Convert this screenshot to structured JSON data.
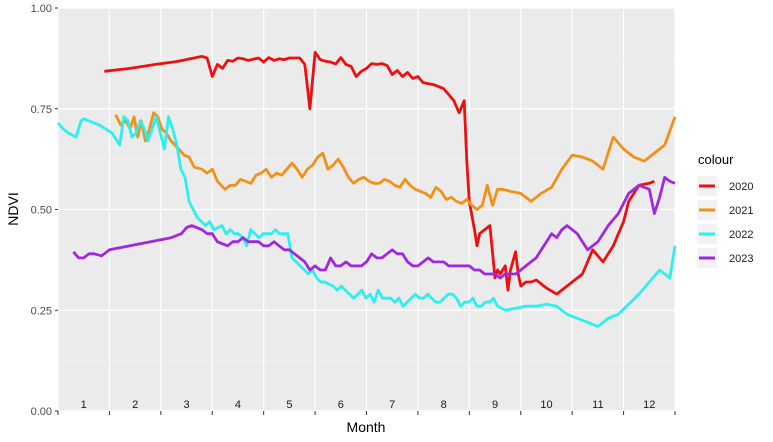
{
  "chart_data": {
    "type": "line",
    "xlabel": "Month",
    "ylabel": "NDVI",
    "xlim": [
      0.5,
      12.5
    ],
    "ylim": [
      0,
      1
    ],
    "grid": true,
    "legend_position": "right",
    "legend_title": "colour",
    "month_labels": [
      "1",
      "2",
      "3",
      "4",
      "5",
      "6",
      "7",
      "8",
      "9",
      "10",
      "11",
      "12"
    ],
    "y_ticks": [
      {
        "v": 0.0,
        "label": "0.00"
      },
      {
        "v": 0.25,
        "label": "0.25"
      },
      {
        "v": 0.5,
        "label": "0.50"
      },
      {
        "v": 0.75,
        "label": "0.75"
      },
      {
        "v": 1.0,
        "label": "1.00"
      }
    ],
    "colors": {
      "2020": "#ee1010",
      "2021": "#f39019",
      "2022": "#2cf0f0",
      "2023": "#a127e0"
    },
    "series": [
      {
        "name": "2020",
        "x": [
          1.4,
          1.9,
          2.4,
          2.8,
          3.3,
          3.4,
          3.5,
          3.6,
          3.7,
          3.8,
          3.9,
          4.0,
          4.1,
          4.2,
          4.4,
          4.5,
          4.6,
          4.7,
          4.8,
          4.9,
          5.0,
          5.1,
          5.2,
          5.3,
          5.4,
          5.5,
          5.6,
          5.7,
          5.8,
          5.9,
          6.0,
          6.1,
          6.2,
          6.3,
          6.4,
          6.5,
          6.6,
          6.7,
          6.8,
          6.9,
          7.0,
          7.1,
          7.2,
          7.3,
          7.4,
          7.5,
          7.6,
          7.8,
          8.0,
          8.2,
          8.3,
          8.4,
          8.45,
          8.5,
          8.6,
          8.65,
          8.7,
          8.9,
          9.0,
          9.05,
          9.1,
          9.2,
          9.25,
          9.3,
          9.4,
          9.45,
          9.5,
          9.55,
          9.6,
          9.7,
          9.8,
          10.0,
          10.2,
          10.5,
          10.7,
          10.9,
          11.1,
          11.3,
          11.4,
          11.5,
          11.6,
          11.8,
          12.0,
          12.1
        ],
        "y": [
          0.843,
          0.85,
          0.86,
          0.867,
          0.88,
          0.876,
          0.83,
          0.86,
          0.85,
          0.87,
          0.868,
          0.876,
          0.874,
          0.87,
          0.876,
          0.866,
          0.877,
          0.87,
          0.874,
          0.872,
          0.876,
          0.876,
          0.876,
          0.86,
          0.75,
          0.89,
          0.872,
          0.868,
          0.866,
          0.861,
          0.877,
          0.86,
          0.855,
          0.83,
          0.843,
          0.85,
          0.862,
          0.86,
          0.862,
          0.857,
          0.835,
          0.845,
          0.83,
          0.84,
          0.825,
          0.83,
          0.815,
          0.81,
          0.8,
          0.77,
          0.74,
          0.77,
          0.62,
          0.52,
          0.45,
          0.41,
          0.44,
          0.46,
          0.33,
          0.35,
          0.34,
          0.36,
          0.3,
          0.35,
          0.395,
          0.34,
          0.31,
          0.315,
          0.32,
          0.32,
          0.325,
          0.305,
          0.29,
          0.32,
          0.34,
          0.4,
          0.37,
          0.41,
          0.44,
          0.47,
          0.52,
          0.56,
          0.565,
          0.57
        ]
      },
      {
        "name": "2021",
        "x": [
          1.62,
          1.72,
          1.82,
          1.9,
          1.98,
          2.05,
          2.12,
          2.2,
          2.28,
          2.36,
          2.44,
          2.52,
          2.6,
          2.7,
          2.85,
          2.95,
          3.05,
          3.15,
          3.3,
          3.4,
          3.5,
          3.6,
          3.75,
          3.85,
          3.95,
          4.05,
          4.15,
          4.25,
          4.35,
          4.45,
          4.55,
          4.65,
          4.75,
          4.85,
          4.95,
          5.05,
          5.15,
          5.25,
          5.35,
          5.45,
          5.55,
          5.65,
          5.75,
          5.85,
          5.95,
          6.05,
          6.15,
          6.25,
          6.35,
          6.45,
          6.55,
          6.65,
          6.75,
          6.85,
          6.95,
          7.05,
          7.15,
          7.25,
          7.35,
          7.45,
          7.55,
          7.65,
          7.75,
          7.85,
          7.95,
          8.05,
          8.15,
          8.25,
          8.35,
          8.45,
          8.55,
          8.65,
          8.75,
          8.85,
          8.95,
          9.05,
          9.15,
          9.3,
          9.5,
          9.7,
          9.9,
          10.1,
          10.3,
          10.5,
          10.7,
          10.9,
          11.1,
          11.3,
          11.5,
          11.7,
          11.9,
          12.1,
          12.3,
          12.5
        ],
        "y": [
          0.735,
          0.71,
          0.72,
          0.7,
          0.73,
          0.68,
          0.72,
          0.67,
          0.7,
          0.74,
          0.73,
          0.7,
          0.69,
          0.67,
          0.65,
          0.635,
          0.63,
          0.605,
          0.6,
          0.59,
          0.6,
          0.57,
          0.55,
          0.56,
          0.56,
          0.575,
          0.57,
          0.565,
          0.585,
          0.59,
          0.6,
          0.58,
          0.59,
          0.585,
          0.6,
          0.615,
          0.6,
          0.58,
          0.6,
          0.61,
          0.63,
          0.64,
          0.6,
          0.61,
          0.625,
          0.605,
          0.58,
          0.565,
          0.575,
          0.58,
          0.57,
          0.565,
          0.565,
          0.575,
          0.57,
          0.56,
          0.555,
          0.575,
          0.56,
          0.55,
          0.545,
          0.54,
          0.53,
          0.555,
          0.545,
          0.525,
          0.53,
          0.52,
          0.515,
          0.525,
          0.51,
          0.5,
          0.51,
          0.56,
          0.51,
          0.55,
          0.55,
          0.545,
          0.54,
          0.52,
          0.54,
          0.555,
          0.6,
          0.635,
          0.63,
          0.62,
          0.6,
          0.68,
          0.65,
          0.63,
          0.62,
          0.64,
          0.66,
          0.73
        ]
      },
      {
        "name": "2022",
        "x": [
          0.5,
          0.6,
          0.7,
          0.85,
          0.95,
          1.0,
          1.1,
          1.3,
          1.55,
          1.7,
          1.78,
          1.86,
          1.94,
          2.02,
          2.1,
          2.18,
          2.25,
          2.33,
          2.41,
          2.49,
          2.57,
          2.65,
          2.73,
          2.81,
          2.89,
          2.97,
          3.05,
          3.13,
          3.21,
          3.29,
          3.37,
          3.45,
          3.53,
          3.61,
          3.69,
          3.77,
          3.85,
          3.93,
          4.01,
          4.09,
          4.17,
          4.25,
          4.33,
          4.41,
          4.49,
          4.57,
          4.65,
          4.73,
          4.81,
          4.89,
          4.97,
          5.05,
          5.13,
          5.21,
          5.29,
          5.37,
          5.45,
          5.53,
          5.61,
          5.69,
          5.77,
          5.85,
          5.93,
          6.01,
          6.09,
          6.17,
          6.25,
          6.33,
          6.41,
          6.49,
          6.57,
          6.65,
          6.73,
          6.81,
          6.89,
          6.97,
          7.05,
          7.13,
          7.21,
          7.29,
          7.37,
          7.45,
          7.53,
          7.61,
          7.69,
          7.77,
          7.85,
          7.93,
          8.01,
          8.09,
          8.17,
          8.25,
          8.33,
          8.41,
          8.49,
          8.57,
          8.65,
          8.73,
          8.81,
          8.89,
          8.97,
          9.05,
          9.2,
          9.4,
          9.6,
          9.8,
          10.0,
          10.2,
          10.4,
          10.6,
          10.8,
          11.0,
          11.2,
          11.4,
          11.6,
          11.8,
          12.0,
          12.2,
          12.4,
          12.5
        ],
        "y": [
          0.715,
          0.7,
          0.69,
          0.68,
          0.72,
          0.725,
          0.72,
          0.71,
          0.69,
          0.66,
          0.73,
          0.72,
          0.68,
          0.69,
          0.72,
          0.7,
          0.67,
          0.7,
          0.73,
          0.69,
          0.65,
          0.73,
          0.7,
          0.66,
          0.6,
          0.58,
          0.52,
          0.5,
          0.48,
          0.47,
          0.46,
          0.47,
          0.45,
          0.455,
          0.46,
          0.44,
          0.45,
          0.44,
          0.44,
          0.43,
          0.41,
          0.45,
          0.44,
          0.43,
          0.44,
          0.44,
          0.44,
          0.45,
          0.44,
          0.44,
          0.44,
          0.38,
          0.37,
          0.36,
          0.35,
          0.34,
          0.35,
          0.33,
          0.32,
          0.32,
          0.315,
          0.31,
          0.3,
          0.31,
          0.3,
          0.29,
          0.28,
          0.29,
          0.3,
          0.28,
          0.29,
          0.27,
          0.3,
          0.28,
          0.28,
          0.28,
          0.27,
          0.28,
          0.26,
          0.27,
          0.28,
          0.29,
          0.28,
          0.28,
          0.29,
          0.28,
          0.27,
          0.27,
          0.28,
          0.29,
          0.29,
          0.28,
          0.26,
          0.27,
          0.27,
          0.28,
          0.26,
          0.26,
          0.27,
          0.27,
          0.28,
          0.26,
          0.25,
          0.255,
          0.26,
          0.26,
          0.265,
          0.26,
          0.24,
          0.23,
          0.22,
          0.21,
          0.23,
          0.24,
          0.265,
          0.29,
          0.32,
          0.35,
          0.33,
          0.41
        ]
      },
      {
        "name": "2023",
        "x": [
          0.8,
          0.9,
          1.0,
          1.1,
          1.2,
          1.35,
          1.5,
          1.7,
          1.9,
          2.1,
          2.3,
          2.5,
          2.7,
          2.9,
          3.0,
          3.1,
          3.2,
          3.3,
          3.4,
          3.5,
          3.6,
          3.7,
          3.8,
          3.9,
          4.0,
          4.1,
          4.2,
          4.3,
          4.4,
          4.5,
          4.6,
          4.7,
          4.8,
          4.9,
          5.0,
          5.1,
          5.2,
          5.3,
          5.4,
          5.5,
          5.6,
          5.7,
          5.8,
          5.9,
          6.0,
          6.1,
          6.2,
          6.3,
          6.4,
          6.5,
          6.6,
          6.7,
          6.8,
          6.9,
          7.0,
          7.1,
          7.2,
          7.3,
          7.4,
          7.5,
          7.6,
          7.7,
          7.8,
          7.9,
          8.0,
          8.1,
          8.2,
          8.3,
          8.4,
          8.5,
          8.6,
          8.7,
          8.8,
          8.9,
          9.0,
          9.1,
          9.2,
          9.3,
          9.4,
          9.5,
          9.6,
          9.7,
          9.8,
          9.9,
          10.0,
          10.1,
          10.2,
          10.3,
          10.4,
          10.5,
          10.6,
          10.8,
          11.0,
          11.2,
          11.4,
          11.6,
          11.8,
          12.0,
          12.1,
          12.2,
          12.3,
          12.4,
          12.5
        ],
        "y": [
          0.395,
          0.38,
          0.38,
          0.39,
          0.39,
          0.385,
          0.4,
          0.405,
          0.41,
          0.415,
          0.42,
          0.425,
          0.43,
          0.44,
          0.455,
          0.46,
          0.455,
          0.45,
          0.44,
          0.44,
          0.42,
          0.415,
          0.41,
          0.42,
          0.42,
          0.43,
          0.42,
          0.42,
          0.42,
          0.41,
          0.41,
          0.42,
          0.41,
          0.4,
          0.4,
          0.39,
          0.38,
          0.37,
          0.35,
          0.36,
          0.35,
          0.35,
          0.38,
          0.36,
          0.36,
          0.37,
          0.36,
          0.36,
          0.36,
          0.37,
          0.39,
          0.38,
          0.38,
          0.39,
          0.4,
          0.39,
          0.39,
          0.37,
          0.36,
          0.36,
          0.37,
          0.38,
          0.37,
          0.37,
          0.37,
          0.36,
          0.36,
          0.36,
          0.36,
          0.36,
          0.35,
          0.35,
          0.34,
          0.34,
          0.34,
          0.33,
          0.34,
          0.34,
          0.34,
          0.35,
          0.36,
          0.37,
          0.38,
          0.4,
          0.42,
          0.44,
          0.43,
          0.45,
          0.46,
          0.45,
          0.44,
          0.4,
          0.42,
          0.46,
          0.49,
          0.54,
          0.56,
          0.55,
          0.49,
          0.53,
          0.58,
          0.57,
          0.565
        ]
      }
    ]
  }
}
